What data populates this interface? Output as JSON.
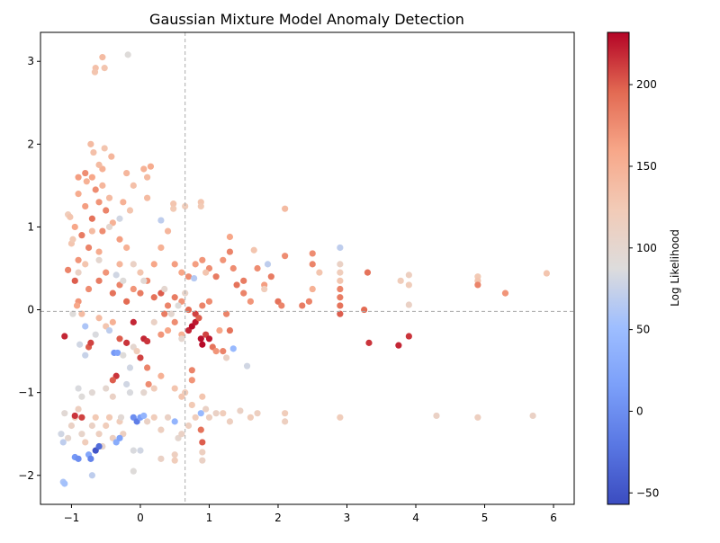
{
  "chart_data": {
    "type": "scatter",
    "title": "Gaussian Mixture Model Anomaly Detection",
    "xlabel": "",
    "ylabel": "",
    "xlim": [
      -1.45,
      6.3
    ],
    "ylim": [
      -2.35,
      3.35
    ],
    "xticks": [
      -1,
      0,
      1,
      2,
      3,
      4,
      5,
      6
    ],
    "yticks": [
      -2,
      -1,
      0,
      1,
      2,
      3
    ],
    "grid": false,
    "reference_lines": {
      "vertical_x": 0.65,
      "horizontal_y": -0.02
    },
    "colorbar": {
      "label": "Log Likelihood",
      "colormap": "coolwarm",
      "range": [
        -57,
        232
      ],
      "ticks": [
        -50,
        0,
        50,
        100,
        150,
        200
      ]
    },
    "points": [
      [
        -0.78,
        1.55,
        150
      ],
      [
        -0.7,
        1.6,
        160
      ],
      [
        -0.65,
        1.45,
        175
      ],
      [
        -0.55,
        1.5,
        145
      ],
      [
        -0.6,
        1.3,
        170
      ],
      [
        -0.8,
        1.25,
        165
      ],
      [
        -0.9,
        1.4,
        155
      ],
      [
        -0.5,
        1.2,
        180
      ],
      [
        -0.45,
        1.35,
        140
      ],
      [
        -0.7,
        1.1,
        190
      ],
      [
        -0.85,
        0.9,
        185
      ],
      [
        -0.95,
        1.0,
        160
      ],
      [
        -0.55,
        0.95,
        175
      ],
      [
        -0.4,
        1.05,
        150
      ],
      [
        -0.3,
        0.85,
        165
      ],
      [
        -0.75,
        0.75,
        180
      ],
      [
        -0.6,
        0.7,
        155
      ],
      [
        -0.9,
        0.6,
        170
      ],
      [
        -1.0,
        0.8,
        130
      ],
      [
        -1.05,
        1.15,
        120
      ],
      [
        -0.72,
        2.0,
        140
      ],
      [
        -0.68,
        1.9,
        135
      ],
      [
        -0.52,
        1.95,
        130
      ],
      [
        -0.42,
        1.85,
        145
      ],
      [
        -0.55,
        1.7,
        150
      ],
      [
        -0.6,
        1.75,
        140
      ],
      [
        -0.8,
        1.65,
        175
      ],
      [
        -0.9,
        1.6,
        165
      ],
      [
        -0.65,
        2.92,
        135
      ],
      [
        -0.66,
        2.87,
        130
      ],
      [
        -0.55,
        3.05,
        140
      ],
      [
        -0.52,
        2.92,
        130
      ],
      [
        -0.18,
        3.08,
        90
      ],
      [
        -0.2,
        1.65,
        145
      ],
      [
        0.05,
        1.7,
        150
      ],
      [
        0.15,
        1.73,
        155
      ],
      [
        0.1,
        1.6,
        140
      ],
      [
        -0.1,
        1.5,
        135
      ],
      [
        -0.15,
        1.2,
        130
      ],
      [
        -0.25,
        1.3,
        150
      ],
      [
        0.1,
        1.35,
        140
      ],
      [
        0.3,
        1.08,
        70
      ],
      [
        0.48,
        1.28,
        130
      ],
      [
        0.48,
        1.22,
        125
      ],
      [
        0.65,
        1.25,
        120
      ],
      [
        0.88,
        1.3,
        130
      ],
      [
        0.88,
        1.25,
        125
      ],
      [
        -1.02,
        1.12,
        130
      ],
      [
        -0.98,
        0.85,
        125
      ],
      [
        -1.05,
        0.48,
        180
      ],
      [
        -0.95,
        0.35,
        200
      ],
      [
        -0.9,
        0.1,
        170
      ],
      [
        -0.92,
        0.05,
        160
      ],
      [
        -0.85,
        -0.05,
        140
      ],
      [
        -1.1,
        -0.32,
        220
      ],
      [
        -0.98,
        -0.05,
        90
      ],
      [
        -0.88,
        -0.42,
        80
      ],
      [
        -0.8,
        -0.2,
        60
      ],
      [
        -0.75,
        -0.45,
        200
      ],
      [
        -0.72,
        -0.4,
        210
      ],
      [
        -0.75,
        0.25,
        175
      ],
      [
        -0.6,
        0.35,
        185
      ],
      [
        -0.5,
        0.45,
        170
      ],
      [
        -0.4,
        0.2,
        190
      ],
      [
        -0.3,
        0.3,
        180
      ],
      [
        -0.2,
        0.1,
        195
      ],
      [
        -0.1,
        0.25,
        170
      ],
      [
        0.0,
        0.2,
        185
      ],
      [
        0.1,
        0.35,
        175
      ],
      [
        0.2,
        0.15,
        190
      ],
      [
        0.3,
        0.2,
        200
      ],
      [
        0.4,
        0.05,
        180
      ],
      [
        0.5,
        0.15,
        185
      ],
      [
        0.6,
        0.1,
        170
      ],
      [
        0.7,
        0.0,
        195
      ],
      [
        0.8,
        -0.05,
        210
      ],
      [
        0.9,
        0.05,
        180
      ],
      [
        1.0,
        0.1,
        175
      ],
      [
        -0.6,
        -0.1,
        140
      ],
      [
        -0.5,
        -0.2,
        130
      ],
      [
        -0.4,
        -0.15,
        150
      ],
      [
        -0.3,
        -0.35,
        200
      ],
      [
        -0.35,
        -0.8,
        215
      ],
      [
        -0.4,
        -0.85,
        200
      ],
      [
        -0.38,
        -0.52,
        10
      ],
      [
        -0.33,
        -0.52,
        20
      ],
      [
        -0.2,
        -0.4,
        215
      ],
      [
        -0.1,
        -0.15,
        220
      ],
      [
        -0.1,
        -0.45,
        100
      ],
      [
        0.0,
        -0.58,
        210
      ],
      [
        0.05,
        -0.35,
        220
      ],
      [
        0.1,
        -0.38,
        215
      ],
      [
        0.1,
        -0.7,
        180
      ],
      [
        0.12,
        -0.9,
        175
      ],
      [
        0.3,
        -0.3,
        170
      ],
      [
        0.35,
        -0.05,
        185
      ],
      [
        0.4,
        -0.25,
        160
      ],
      [
        0.5,
        -0.15,
        175
      ],
      [
        0.6,
        -0.3,
        150
      ],
      [
        0.7,
        -0.25,
        220
      ],
      [
        0.75,
        -0.2,
        230
      ],
      [
        0.8,
        -0.15,
        225
      ],
      [
        0.85,
        -0.1,
        200
      ],
      [
        0.88,
        -0.35,
        228
      ],
      [
        0.9,
        -0.42,
        230
      ],
      [
        0.95,
        -0.3,
        210
      ],
      [
        1.0,
        -0.35,
        225
      ],
      [
        1.05,
        -0.45,
        190
      ],
      [
        1.1,
        -0.5,
        170
      ],
      [
        1.2,
        -0.5,
        180
      ],
      [
        0.75,
        -0.73,
        180
      ],
      [
        0.75,
        -0.85,
        170
      ],
      [
        0.6,
        -1.05,
        130
      ],
      [
        1.0,
        0.5,
        175
      ],
      [
        1.1,
        0.4,
        185
      ],
      [
        1.2,
        0.6,
        170
      ],
      [
        1.3,
        0.7,
        180
      ],
      [
        1.35,
        0.5,
        175
      ],
      [
        1.4,
        0.3,
        190
      ],
      [
        1.5,
        0.35,
        185
      ],
      [
        1.6,
        0.1,
        170
      ],
      [
        1.7,
        0.5,
        175
      ],
      [
        1.8,
        0.3,
        165
      ],
      [
        1.9,
        0.4,
        185
      ],
      [
        2.0,
        0.1,
        190
      ],
      [
        2.05,
        0.05,
        180
      ],
      [
        2.1,
        0.65,
        175
      ],
      [
        2.1,
        1.22,
        140
      ],
      [
        1.25,
        -0.05,
        180
      ],
      [
        1.3,
        -0.25,
        190
      ],
      [
        1.35,
        -0.47,
        45
      ],
      [
        1.55,
        -0.68,
        80
      ],
      [
        1.15,
        -0.25,
        160
      ],
      [
        1.3,
        0.88,
        160
      ],
      [
        1.5,
        0.2,
        180
      ],
      [
        1.65,
        0.72,
        130
      ],
      [
        1.85,
        0.55,
        70
      ],
      [
        1.8,
        0.25,
        120
      ],
      [
        2.35,
        0.05,
        185
      ],
      [
        2.45,
        0.1,
        180
      ],
      [
        2.5,
        0.25,
        150
      ],
      [
        2.5,
        0.68,
        175
      ],
      [
        2.5,
        0.55,
        180
      ],
      [
        2.6,
        0.45,
        130
      ],
      [
        2.9,
        0.75,
        70
      ],
      [
        2.9,
        0.55,
        110
      ],
      [
        2.9,
        0.45,
        120
      ],
      [
        2.9,
        0.35,
        130
      ],
      [
        2.9,
        0.25,
        180
      ],
      [
        2.9,
        0.15,
        185
      ],
      [
        2.9,
        0.05,
        190
      ],
      [
        2.9,
        -0.05,
        200
      ],
      [
        3.25,
        0.0,
        195
      ],
      [
        3.3,
        0.45,
        190
      ],
      [
        3.32,
        -0.4,
        215
      ],
      [
        3.75,
        -0.43,
        220
      ],
      [
        3.78,
        0.35,
        120
      ],
      [
        3.9,
        0.42,
        115
      ],
      [
        3.9,
        0.3,
        120
      ],
      [
        3.9,
        0.06,
        110
      ],
      [
        3.9,
        -0.32,
        215
      ],
      [
        4.9,
        0.4,
        125
      ],
      [
        4.9,
        0.35,
        130
      ],
      [
        4.9,
        0.3,
        180
      ],
      [
        5.3,
        0.2,
        170
      ],
      [
        5.9,
        0.44,
        130
      ],
      [
        -1.15,
        -1.5,
        80
      ],
      [
        -1.12,
        -1.6,
        70
      ],
      [
        -1.1,
        -1.25,
        95
      ],
      [
        -1.05,
        -1.55,
        100
      ],
      [
        -1.0,
        -1.4,
        110
      ],
      [
        -0.95,
        -1.3,
        120
      ],
      [
        -0.9,
        -1.2,
        115
      ],
      [
        -0.85,
        -1.5,
        105
      ],
      [
        -0.8,
        -1.6,
        120
      ],
      [
        -0.75,
        -1.75,
        25
      ],
      [
        -0.7,
        -1.4,
        110
      ],
      [
        -0.65,
        -1.3,
        125
      ],
      [
        -0.6,
        -1.5,
        115
      ],
      [
        -0.55,
        -1.65,
        105
      ],
      [
        -0.5,
        -1.4,
        120
      ],
      [
        -0.45,
        -1.3,
        125
      ],
      [
        -0.4,
        -1.55,
        115
      ],
      [
        -0.35,
        -1.6,
        30
      ],
      [
        -0.3,
        -1.35,
        120
      ],
      [
        -0.25,
        -1.5,
        115
      ],
      [
        -1.12,
        -2.08,
        60
      ],
      [
        -1.1,
        -2.1,
        55
      ],
      [
        -0.7,
        -2.0,
        70
      ],
      [
        -0.1,
        -1.95,
        90
      ],
      [
        -0.95,
        -1.78,
        10
      ],
      [
        -0.9,
        -1.8,
        0
      ],
      [
        -0.65,
        -1.7,
        -50
      ],
      [
        -0.6,
        -1.65,
        -30
      ],
      [
        -0.85,
        -1.3,
        210
      ],
      [
        -0.95,
        -1.28,
        215
      ],
      [
        -0.72,
        -1.8,
        -10
      ],
      [
        -0.28,
        -1.3,
        95
      ],
      [
        -0.3,
        -1.55,
        20
      ],
      [
        -0.1,
        -1.3,
        0
      ],
      [
        -0.05,
        -1.35,
        -15
      ],
      [
        0.0,
        -1.3,
        15
      ],
      [
        0.05,
        -1.28,
        40
      ],
      [
        0.1,
        -1.35,
        110
      ],
      [
        0.2,
        -1.3,
        120
      ],
      [
        0.3,
        -1.45,
        115
      ],
      [
        0.4,
        -1.3,
        110
      ],
      [
        0.5,
        -1.35,
        40
      ],
      [
        0.55,
        -1.55,
        100
      ],
      [
        0.6,
        -1.5,
        110
      ],
      [
        0.7,
        -1.4,
        115
      ],
      [
        0.8,
        -1.3,
        120
      ],
      [
        0.88,
        -1.45,
        190
      ],
      [
        0.9,
        -1.6,
        200
      ],
      [
        0.88,
        -1.25,
        45
      ],
      [
        0.95,
        -1.2,
        110
      ],
      [
        1.0,
        -1.3,
        115
      ],
      [
        1.1,
        -1.25,
        110
      ],
      [
        0.3,
        -0.8,
        150
      ],
      [
        0.2,
        -0.95,
        120
      ],
      [
        0.5,
        -0.95,
        130
      ],
      [
        0.65,
        -1.0,
        120
      ],
      [
        0.75,
        -1.15,
        125
      ],
      [
        0.9,
        -1.05,
        130
      ],
      [
        0.3,
        -1.8,
        110
      ],
      [
        0.5,
        -1.75,
        115
      ],
      [
        0.5,
        -1.82,
        120
      ],
      [
        0.9,
        -1.72,
        115
      ],
      [
        0.9,
        -1.82,
        110
      ],
      [
        0.0,
        -1.7,
        80
      ],
      [
        -0.1,
        -1.7,
        85
      ],
      [
        1.2,
        -1.25,
        120
      ],
      [
        1.3,
        -1.35,
        115
      ],
      [
        1.45,
        -1.22,
        110
      ],
      [
        1.6,
        -1.3,
        120
      ],
      [
        1.7,
        -1.25,
        115
      ],
      [
        2.1,
        -1.25,
        120
      ],
      [
        2.1,
        -1.35,
        115
      ],
      [
        2.9,
        -1.3,
        120
      ],
      [
        4.3,
        -1.28,
        110
      ],
      [
        4.9,
        -1.3,
        115
      ],
      [
        5.7,
        -1.28,
        110
      ],
      [
        -0.9,
        0.45,
        110
      ],
      [
        -0.8,
        0.55,
        130
      ],
      [
        -0.7,
        0.95,
        140
      ],
      [
        -0.3,
        0.55,
        145
      ],
      [
        -0.2,
        0.75,
        150
      ],
      [
        0.0,
        0.45,
        130
      ],
      [
        0.2,
        0.55,
        160
      ],
      [
        0.3,
        0.75,
        150
      ],
      [
        0.4,
        0.95,
        145
      ],
      [
        0.5,
        0.55,
        165
      ],
      [
        0.6,
        0.45,
        160
      ],
      [
        0.7,
        0.4,
        175
      ],
      [
        0.8,
        0.55,
        165
      ],
      [
        0.9,
        0.6,
        170
      ],
      [
        0.95,
        0.45,
        130
      ],
      [
        -0.3,
        1.1,
        80
      ],
      [
        -0.45,
        1.0,
        100
      ],
      [
        -0.6,
        0.6,
        100
      ],
      [
        -0.35,
        0.42,
        80
      ],
      [
        -0.25,
        0.35,
        90
      ],
      [
        -0.1,
        0.55,
        110
      ],
      [
        0.05,
        0.35,
        95
      ],
      [
        0.35,
        0.25,
        100
      ],
      [
        0.55,
        0.05,
        90
      ],
      [
        0.65,
        0.2,
        105
      ],
      [
        0.45,
        -0.05,
        100
      ],
      [
        0.78,
        0.38,
        65
      ],
      [
        -0.8,
        -0.55,
        75
      ],
      [
        -0.65,
        -0.3,
        85
      ],
      [
        -0.45,
        -0.25,
        70
      ],
      [
        -0.25,
        -0.55,
        90
      ],
      [
        -0.15,
        -0.7,
        80
      ],
      [
        -0.05,
        -0.5,
        120
      ],
      [
        0.2,
        -0.15,
        110
      ],
      [
        0.6,
        -0.35,
        100
      ],
      [
        1.25,
        -0.58,
        110
      ],
      [
        -0.9,
        -0.95,
        85
      ],
      [
        -0.85,
        -1.05,
        90
      ],
      [
        -0.7,
        -1.0,
        95
      ],
      [
        -0.5,
        -0.95,
        100
      ],
      [
        -0.4,
        -1.05,
        110
      ],
      [
        -0.2,
        -0.9,
        80
      ],
      [
        -0.15,
        -1.0,
        85
      ],
      [
        0.05,
        -1.0,
        100
      ]
    ]
  }
}
